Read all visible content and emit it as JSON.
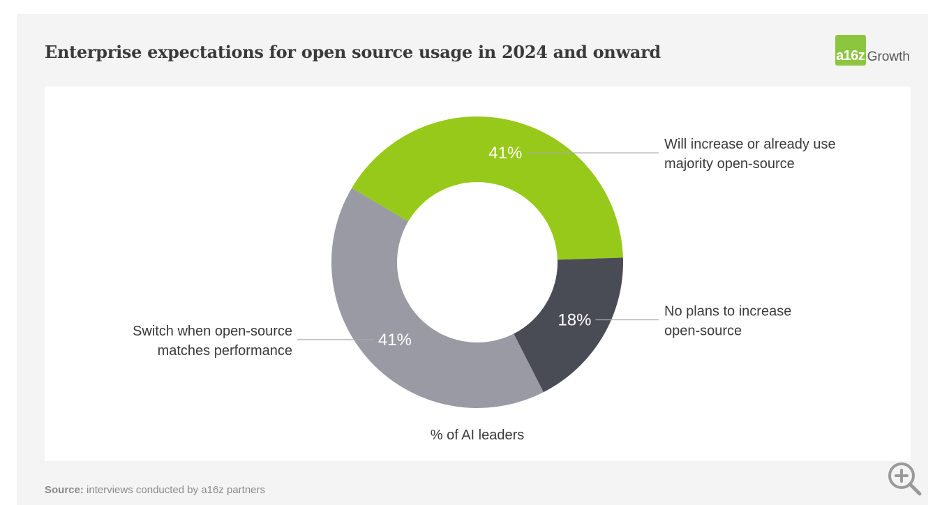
{
  "chart_data": {
    "type": "pie",
    "title": "Enterprise expectations for open source usage in 2024 and onward",
    "xlabel": "% of AI leaders",
    "slices": [
      {
        "label": "Will increase or already use majority open-source",
        "value": 41,
        "value_label": "41%",
        "color": "#97c91a"
      },
      {
        "label": "No plans to increase open-source",
        "value": 18,
        "value_label": "18%",
        "color": "#4a4c55"
      },
      {
        "label": "Switch when open-source matches performance",
        "value": 41,
        "value_label": "41%",
        "color": "#9a9aa4"
      }
    ],
    "donut": true,
    "legend": "callout-labels"
  },
  "brand": {
    "logo_text": "a16z",
    "name": "Growth",
    "color": "#8cc63f"
  },
  "source": {
    "label": "Source:",
    "text": "interviews conducted by a16z partners"
  },
  "zoom": {
    "icon": "zoom-in-icon"
  }
}
